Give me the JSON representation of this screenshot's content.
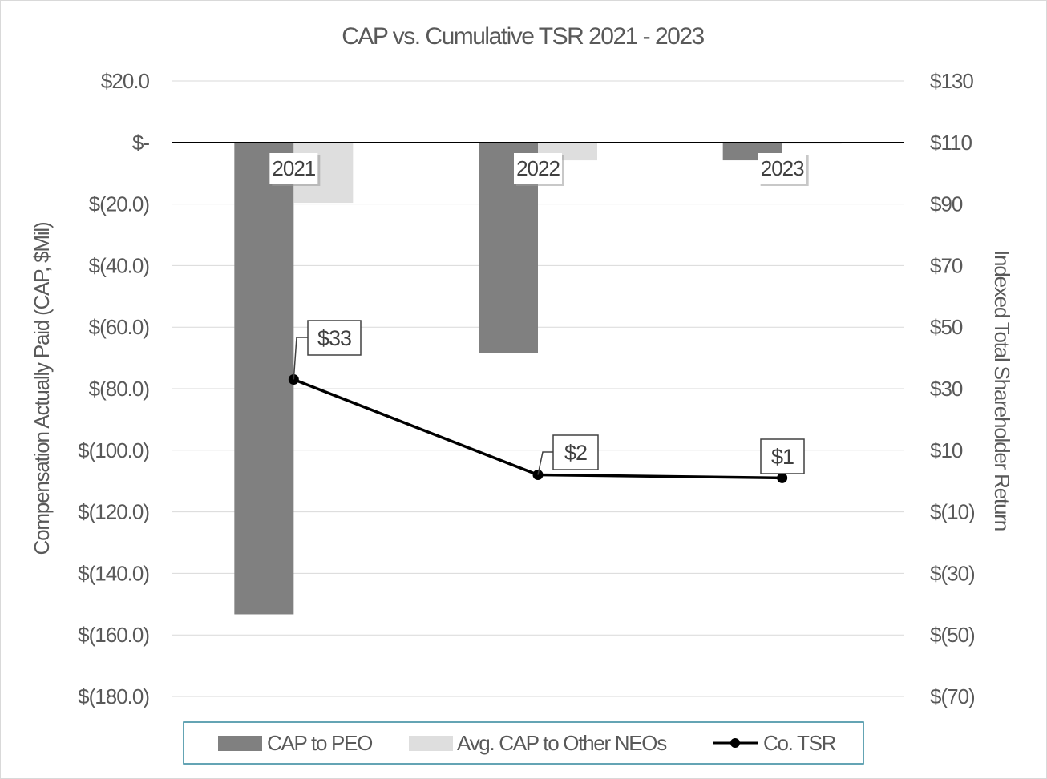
{
  "chart_data": {
    "type": "bar",
    "title": "CAP vs. Cumulative TSR 2021 - 2023",
    "categories": [
      "2021",
      "2022",
      "2023"
    ],
    "ylabel": "Compensation Actually Paid  (CAP, $Mil)",
    "y2label": "Indexed Total Shareholder Return",
    "ylim": [
      -180,
      20
    ],
    "y2lim": [
      -70,
      130
    ],
    "y_ticks": [
      20,
      0,
      -20,
      -40,
      -60,
      -80,
      -100,
      -120,
      -140,
      -160,
      -180
    ],
    "y_tick_labels": [
      "$20.0",
      "$-",
      "$(20.0)",
      "$(40.0)",
      "$(60.0)",
      "$(80.0)",
      "$(100.0)",
      "$(120.0)",
      "$(140.0)",
      "$(160.0)",
      "$(180.0)"
    ],
    "y2_ticks": [
      130,
      110,
      90,
      70,
      50,
      30,
      10,
      -10,
      -30,
      -50,
      -70
    ],
    "y2_tick_labels": [
      "$130",
      "$110",
      "$90",
      "$70",
      "$50",
      "$30",
      "$10",
      "$(10)",
      "$(30)",
      "$(50)",
      "$(70)"
    ],
    "series": [
      {
        "name": "CAP to PEO",
        "type": "bar",
        "axis": "left",
        "color": "#808080",
        "values": [
          -153.3,
          -68.3,
          -5.8
        ]
      },
      {
        "name": "Avg. CAP to Other NEOs",
        "type": "bar",
        "axis": "left",
        "color": "#dedede",
        "values": [
          -19.6,
          -5.8,
          -0.4
        ]
      },
      {
        "name": "Co. TSR",
        "type": "line",
        "axis": "right",
        "color": "#000000",
        "values": [
          33,
          2,
          1
        ],
        "labels": [
          "$33",
          "$2",
          "$1"
        ]
      }
    ],
    "legend": [
      "CAP to PEO",
      "Avg. CAP to Other NEOs",
      "Co. TSR"
    ],
    "legend_position": "bottom",
    "grid": true
  }
}
